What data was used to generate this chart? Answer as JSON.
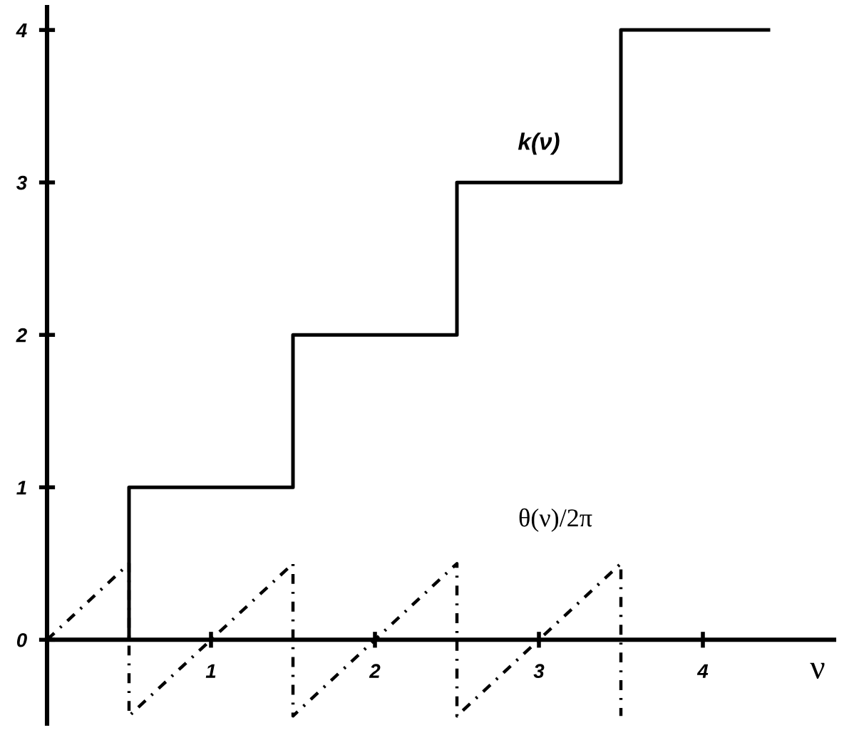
{
  "chart_data": {
    "type": "line",
    "xlabel": "ν",
    "xlim": [
      0,
      4.8
    ],
    "ylim": [
      -0.55,
      4.15
    ],
    "xticks": [
      1,
      2,
      3,
      4
    ],
    "yticks": [
      0,
      1,
      2,
      3,
      4
    ],
    "series": [
      {
        "name": "k(ν)",
        "type": "step",
        "color": "#000000",
        "line_style": "solid",
        "x": [
          0,
          0.5,
          1.5,
          2.5,
          3.5,
          4.4
        ],
        "values": [
          0,
          1,
          2,
          3,
          4,
          4
        ]
      },
      {
        "name": "θ(ν)/2π",
        "color": "#000000",
        "line_style": "dashdot",
        "x": [
          0,
          0.5,
          0.5,
          1.5,
          1.5,
          2.5,
          2.5,
          3.5,
          3.5
        ],
        "values": [
          0,
          0.5,
          -0.5,
          0.5,
          -0.5,
          0.5,
          -0.5,
          0.5,
          -0.5
        ]
      }
    ]
  }
}
